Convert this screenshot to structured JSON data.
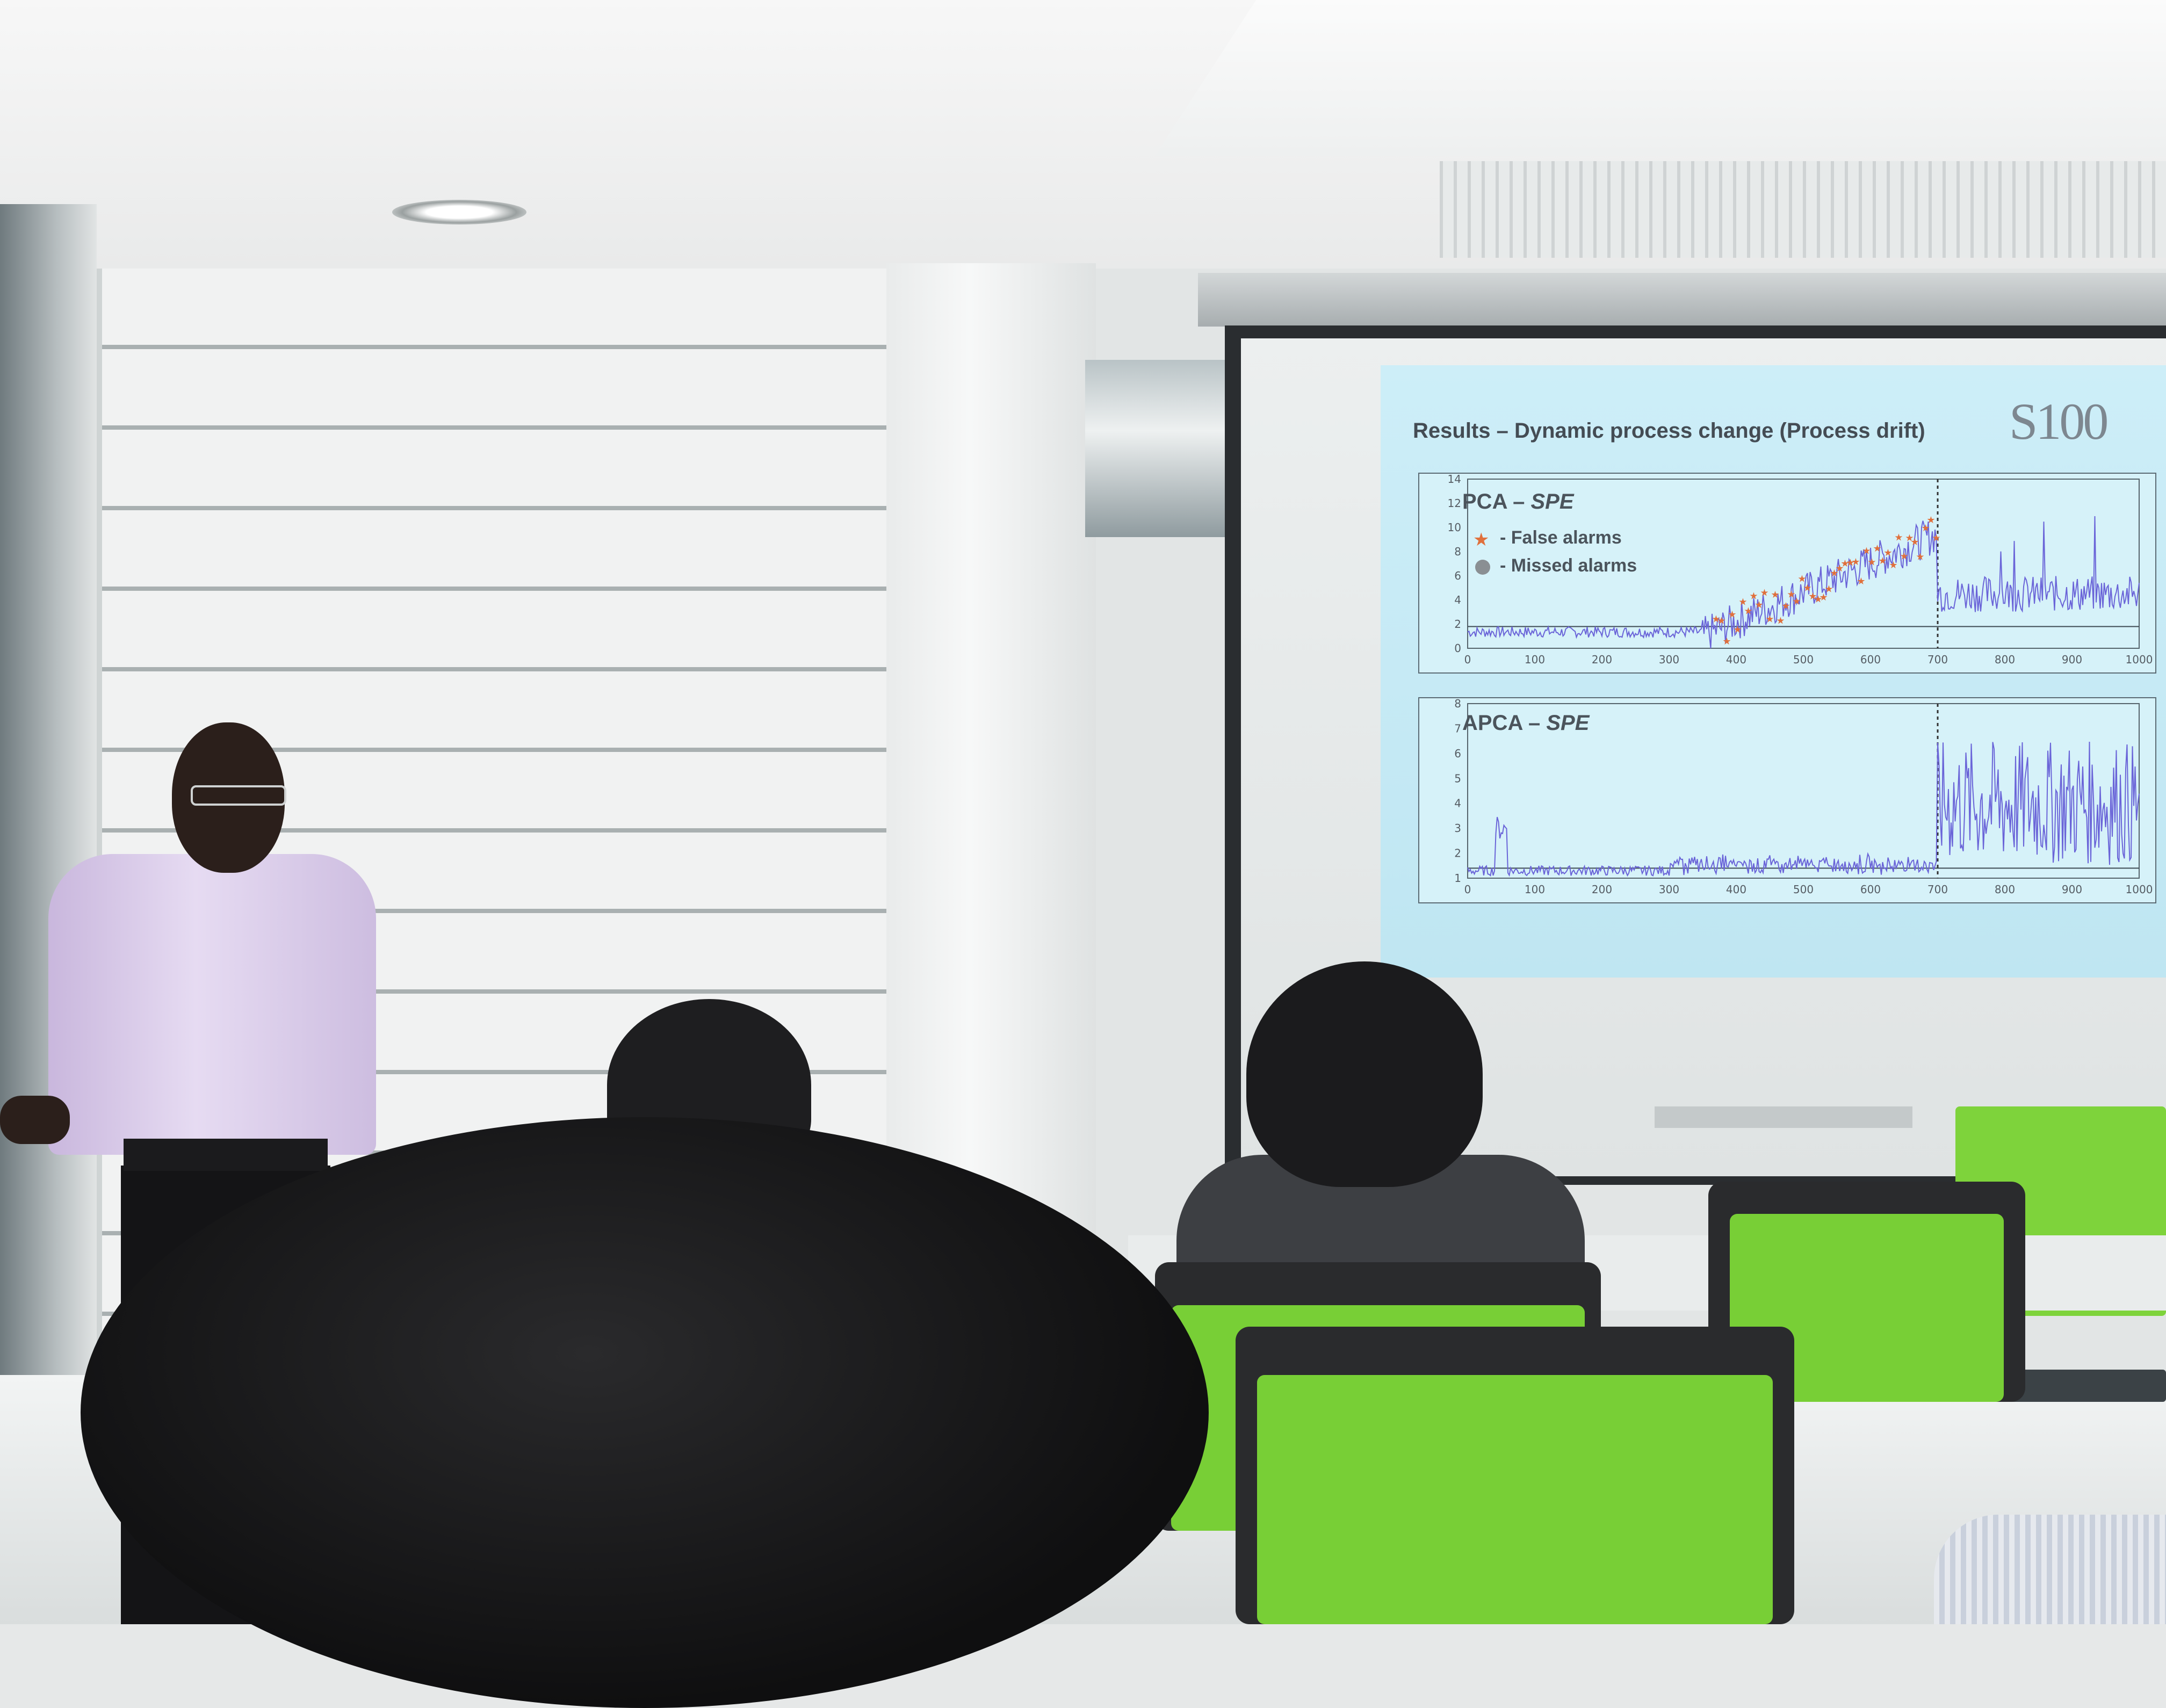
{
  "slide": {
    "title": "Results – Dynamic process change (Process drift)",
    "logo_text": "S100"
  },
  "pca_panel": {
    "label_main": "PCA – ",
    "label_italic": "SPE",
    "legend_false": "- False alarms",
    "legend_missed": "- Missed alarms",
    "y_ticks": [
      "0",
      "2",
      "4",
      "6",
      "8",
      "10",
      "12",
      "14"
    ],
    "x_ticks": [
      "0",
      "100",
      "200",
      "300",
      "400",
      "500",
      "600",
      "700",
      "800",
      "900",
      "1000"
    ]
  },
  "apca_panel": {
    "label_main": "APCA – ",
    "label_italic": "SPE",
    "y_ticks": [
      "1",
      "2",
      "3",
      "4",
      "5",
      "6",
      "7",
      "8"
    ],
    "x_ticks": [
      "0",
      "100",
      "200",
      "300",
      "400",
      "500",
      "600",
      "700",
      "800",
      "900",
      "1000"
    ]
  },
  "colors": {
    "series_line": "#6a64d8",
    "alarm_marker": "#e0703c",
    "threshold": "#3c4a52"
  }
}
